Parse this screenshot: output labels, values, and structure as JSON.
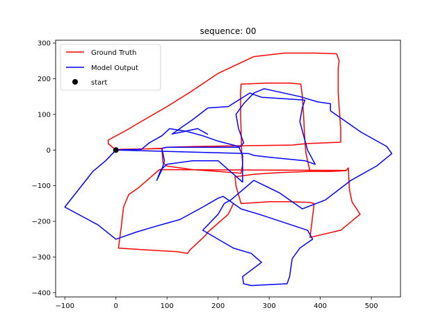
{
  "chart_data": {
    "type": "line",
    "title": "sequence: 00",
    "xlabel": "",
    "ylabel": "",
    "xlim": [
      -118,
      557
    ],
    "ylim": [
      -412,
      308
    ],
    "x_ticks": [
      -100,
      0,
      100,
      200,
      300,
      400,
      500
    ],
    "y_ticks": [
      -400,
      -300,
      -200,
      -100,
      0,
      100,
      200,
      300
    ],
    "grid": false,
    "legend_position": "upper-left",
    "series": [
      {
        "name": "Ground Truth",
        "color": "#ff0000",
        "points": [
          [
            0,
            0
          ],
          [
            8,
            2
          ],
          [
            50,
            3
          ],
          [
            90,
            4
          ],
          [
            100,
            8
          ],
          [
            160,
            10
          ],
          [
            240,
            12
          ],
          [
            345,
            14
          ],
          [
            372,
            18
          ],
          [
            440,
            22
          ],
          [
            440,
            60
          ],
          [
            437,
            120
          ],
          [
            435,
            160
          ],
          [
            435,
            230
          ],
          [
            437,
            250
          ],
          [
            432,
            270
          ],
          [
            390,
            272
          ],
          [
            330,
            272
          ],
          [
            270,
            262
          ],
          [
            200,
            215
          ],
          [
            148,
            165
          ],
          [
            100,
            122
          ],
          [
            52,
            82
          ],
          [
            20,
            55
          ],
          [
            -15,
            28
          ],
          [
            -15,
            18
          ],
          [
            0,
            0
          ],
          [
            90,
            5
          ],
          [
            92,
            -35
          ],
          [
            100,
            -45
          ],
          [
            150,
            -55
          ],
          [
            200,
            -60
          ],
          [
            245,
            -65
          ],
          [
            248,
            -40
          ],
          [
            246,
            0
          ],
          [
            244,
            100
          ],
          [
            244,
            160
          ],
          [
            245,
            185
          ],
          [
            300,
            188
          ],
          [
            340,
            188
          ],
          [
            362,
            185
          ],
          [
            365,
            150
          ],
          [
            368,
            80
          ],
          [
            370,
            20
          ],
          [
            372,
            -10
          ],
          [
            380,
            -60
          ],
          [
            420,
            -60
          ],
          [
            450,
            -58
          ],
          [
            455,
            -50
          ],
          [
            457,
            -110
          ],
          [
            462,
            -145
          ],
          [
            478,
            -180
          ],
          [
            440,
            -225
          ],
          [
            380,
            -245
          ],
          [
            388,
            -150
          ],
          [
            380,
            -147
          ],
          [
            340,
            -145
          ],
          [
            300,
            -145
          ],
          [
            245,
            -150
          ],
          [
            235,
            -100
          ],
          [
            233,
            -75
          ],
          [
            270,
            -68
          ],
          [
            320,
            -63
          ],
          [
            380,
            -60
          ],
          [
            420,
            -60
          ],
          [
            450,
            -57
          ],
          [
            85,
            -55
          ],
          [
            45,
            -105
          ],
          [
            25,
            -125
          ],
          [
            15,
            -160
          ],
          [
            10,
            -220
          ],
          [
            5,
            -275
          ],
          [
            60,
            -280
          ],
          [
            120,
            -285
          ],
          [
            140,
            -290
          ],
          [
            145,
            -280
          ],
          [
            160,
            -260
          ],
          [
            175,
            -240
          ],
          [
            180,
            -230
          ],
          [
            220,
            -180
          ],
          [
            230,
            -150
          ]
        ]
      },
      {
        "name": "Model Output",
        "color": "#0000ff",
        "points": [
          [
            0,
            0
          ],
          [
            -20,
            -30
          ],
          [
            -45,
            -60
          ],
          [
            -100,
            -160
          ],
          [
            -35,
            -210
          ],
          [
            0,
            -250
          ],
          [
            10,
            -245
          ],
          [
            40,
            -230
          ],
          [
            75,
            -215
          ],
          [
            100,
            -205
          ],
          [
            125,
            -195
          ],
          [
            170,
            -160
          ],
          [
            200,
            -135
          ],
          [
            210,
            -130
          ],
          [
            225,
            -145
          ],
          [
            245,
            -165
          ],
          [
            280,
            -180
          ],
          [
            375,
            -225
          ],
          [
            385,
            -250
          ],
          [
            360,
            -275
          ],
          [
            345,
            -305
          ],
          [
            340,
            -355
          ],
          [
            335,
            -375
          ],
          [
            265,
            -380
          ],
          [
            250,
            -375
          ],
          [
            248,
            -355
          ],
          [
            285,
            -315
          ],
          [
            265,
            -290
          ],
          [
            230,
            -275
          ],
          [
            170,
            -225
          ],
          [
            200,
            -180
          ],
          [
            212,
            -150
          ],
          [
            225,
            -140
          ],
          [
            270,
            -85
          ],
          [
            320,
            -120
          ],
          [
            365,
            -165
          ],
          [
            410,
            -140
          ],
          [
            460,
            -85
          ],
          [
            510,
            -45
          ],
          [
            540,
            -10
          ],
          [
            530,
            10
          ],
          [
            480,
            50
          ],
          [
            420,
            110
          ],
          [
            420,
            130
          ],
          [
            395,
            135
          ],
          [
            360,
            150
          ],
          [
            290,
            172
          ],
          [
            270,
            160
          ],
          [
            250,
            130
          ],
          [
            235,
            100
          ],
          [
            240,
            60
          ],
          [
            250,
            20
          ],
          [
            242,
            8
          ],
          [
            190,
            8
          ],
          [
            100,
            8
          ],
          [
            90,
            5
          ],
          [
            95,
            -30
          ],
          [
            90,
            -55
          ],
          [
            80,
            -85
          ],
          [
            88,
            -55
          ],
          [
            100,
            -40
          ],
          [
            150,
            -30
          ],
          [
            200,
            -30
          ],
          [
            248,
            -90
          ],
          [
            248,
            -45
          ],
          [
            248,
            -15
          ],
          [
            240,
            10
          ],
          [
            200,
            25
          ],
          [
            170,
            40
          ],
          [
            140,
            52
          ],
          [
            105,
            60
          ],
          [
            90,
            40
          ],
          [
            65,
            20
          ],
          [
            50,
            2
          ],
          [
            0,
            0
          ],
          [
            260,
            -10
          ],
          [
            270,
            -15
          ],
          [
            300,
            -20
          ],
          [
            370,
            -30
          ],
          [
            390,
            -40
          ],
          [
            375,
            0
          ],
          [
            360,
            80
          ],
          [
            365,
            120
          ],
          [
            370,
            140
          ],
          [
            285,
            148
          ],
          [
            262,
            160
          ],
          [
            240,
            140
          ],
          [
            220,
            122
          ],
          [
            180,
            118
          ],
          [
            150,
            85
          ],
          [
            110,
            45
          ],
          [
            160,
            60
          ],
          [
            180,
            44
          ]
        ]
      }
    ],
    "start": {
      "name": "start",
      "color": "#000000",
      "x": 0,
      "y": 0
    }
  }
}
